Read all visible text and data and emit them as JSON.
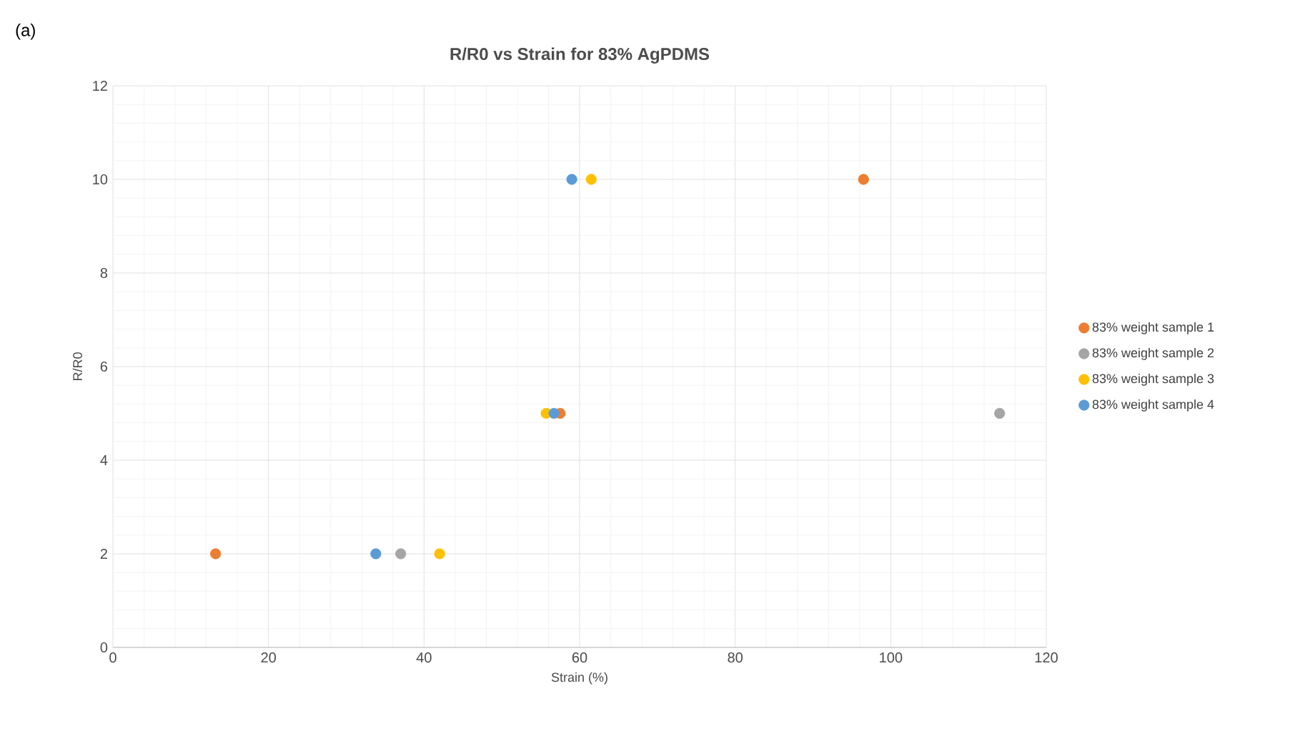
{
  "chart_data": {
    "type": "scatter",
    "title": "R/R0 vs Strain for 83% AgPDMS",
    "xlabel": "Strain (%)",
    "ylabel": "R/R0",
    "annotations": [
      "(a)"
    ],
    "series": [
      {
        "name": "83% weight sample 1",
        "color": "#ed7d31",
        "x": [
          13.2,
          57.5,
          96.5
        ],
        "values": [
          2,
          5,
          10
        ]
      },
      {
        "name": "83% weight sample 2",
        "color": "#a5a5a5",
        "x": [
          37,
          114
        ],
        "values": [
          2,
          5
        ]
      },
      {
        "name": "83% weight sample 3",
        "color": "#ffc000",
        "x": [
          42,
          55.7,
          61.5
        ],
        "values": [
          2,
          5,
          10
        ]
      },
      {
        "name": "83% weight sample 4",
        "color": "#5b9bd5",
        "x": [
          33.8,
          56.7,
          59
        ],
        "values": [
          2,
          5,
          10
        ]
      }
    ],
    "xlim": [
      0,
      120
    ],
    "ylim": [
      0,
      12
    ],
    "xticks": [
      0,
      20,
      40,
      60,
      80,
      100,
      120
    ],
    "yticks": [
      0,
      2,
      4,
      6,
      8,
      10,
      12
    ],
    "grid": true,
    "legend": "right"
  }
}
